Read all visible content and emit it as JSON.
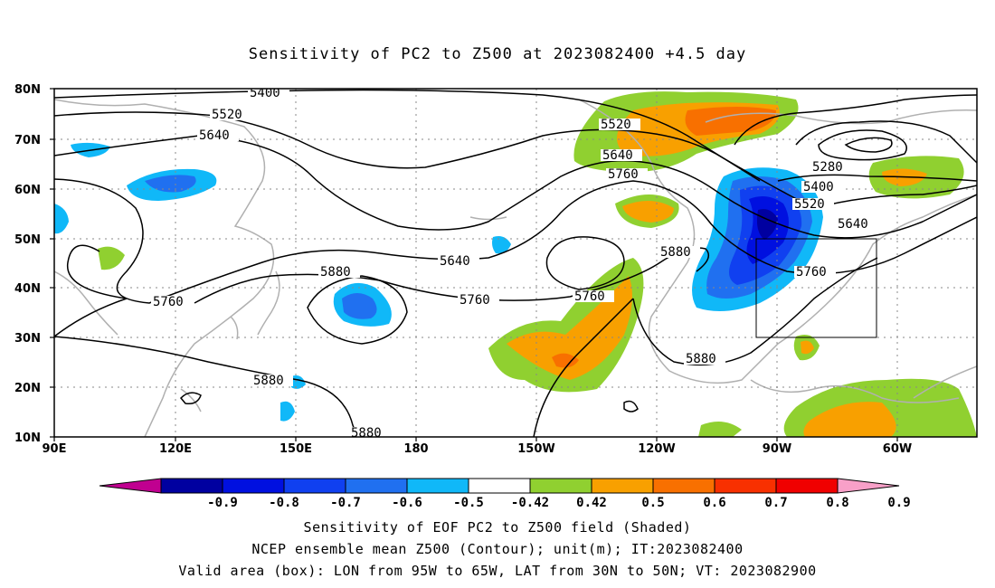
{
  "title": "Sensitivity of PC2 to Z500 at 2023082400 +4.5 day",
  "lat_labels": [
    "80N",
    "70N",
    "60N",
    "50N",
    "40N",
    "30N",
    "20N",
    "10N"
  ],
  "lon_labels": [
    "90E",
    "120E",
    "150E",
    "180",
    "150W",
    "120W",
    "90W",
    "60W"
  ],
  "contour_labels": [
    {
      "text": "5400",
      "key": "c1"
    },
    {
      "text": "5520",
      "key": "c2"
    },
    {
      "text": "5640",
      "key": "c3"
    },
    {
      "text": "5760",
      "key": "c4"
    },
    {
      "text": "5880",
      "key": "c5"
    },
    {
      "text": "5880",
      "key": "c6"
    },
    {
      "text": "5880",
      "key": "c7"
    },
    {
      "text": "5640",
      "key": "c8"
    },
    {
      "text": "5760",
      "key": "c9"
    },
    {
      "text": "5760",
      "key": "c10"
    },
    {
      "text": "5520",
      "key": "c11"
    },
    {
      "text": "5640",
      "key": "c12"
    },
    {
      "text": "5760",
      "key": "c13"
    },
    {
      "text": "5880",
      "key": "c14"
    },
    {
      "text": "5880",
      "key": "c15"
    },
    {
      "text": "5280",
      "key": "c16"
    },
    {
      "text": "5400",
      "key": "c17"
    },
    {
      "text": "5520",
      "key": "c18"
    },
    {
      "text": "5640",
      "key": "c19"
    },
    {
      "text": "5760",
      "key": "c20"
    }
  ],
  "colorbar": {
    "labels": [
      "-0.9",
      "-0.8",
      "-0.7",
      "-0.6",
      "-0.5",
      "-0.42",
      "0.42",
      "0.5",
      "0.6",
      "0.7",
      "0.8",
      "0.9"
    ],
    "colors": [
      "#c00090",
      "#0000a0",
      "#0010e0",
      "#1040f0",
      "#2070f0",
      "#10b8f8",
      "#ffffff",
      "#90d030",
      "#f8a000",
      "#f87000",
      "#f83000",
      "#f00000",
      "#f8a0c8"
    ]
  },
  "caption": {
    "line1": "Sensitivity of EOF PC2 to Z500 field (Shaded)",
    "line2": "NCEP ensemble mean Z500 (Contour); unit(m); IT:2023082400",
    "line3": "Valid area (box): LON from 95W to 65W, LAT from 30N to 50N; VT: 2023082900"
  }
}
